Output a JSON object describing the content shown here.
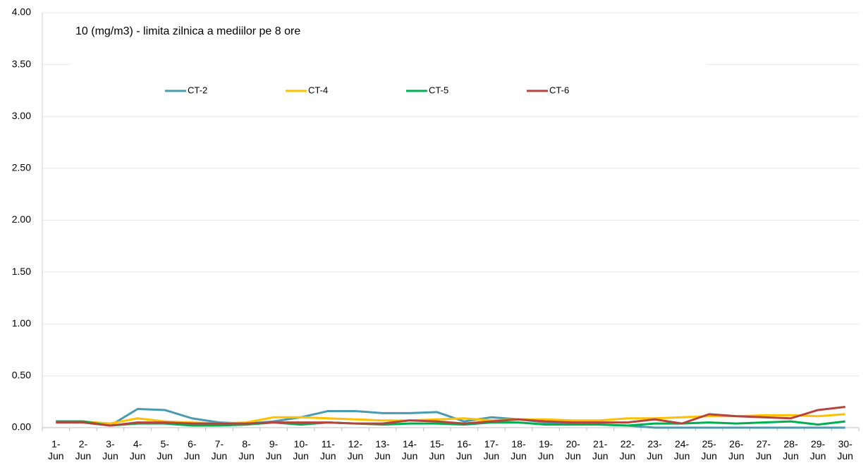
{
  "chart_data": {
    "type": "line",
    "title": "10 (mg/m3) - limita zilnica  a mediilor pe 8 ore",
    "categories": [
      "1-Jun",
      "2-Jun",
      "3-Jun",
      "4-Jun",
      "5-Jun",
      "6-Jun",
      "7-Jun",
      "8-Jun",
      "9-Jun",
      "10-Jun",
      "11-Jun",
      "12-Jun",
      "13-Jun",
      "14-Jun",
      "15-Jun",
      "16-Jun",
      "17-Jun",
      "18-Jun",
      "19-Jun",
      "20-Jun",
      "21-Jun",
      "22-Jun",
      "23-Jun",
      "24-Jun",
      "25-Jun",
      "26-Jun",
      "27-Jun",
      "28-Jun",
      "29-Jun",
      "30-Jun"
    ],
    "series": [
      {
        "name": "CT-2",
        "color": "#4a9bb0",
        "values": [
          0.06,
          0.06,
          0.02,
          0.18,
          0.17,
          0.09,
          0.05,
          0.04,
          0.06,
          0.1,
          0.16,
          0.16,
          0.14,
          0.14,
          0.15,
          0.06,
          0.1,
          0.08,
          0.05,
          0.04,
          0.03,
          0.02,
          0,
          0,
          0,
          0,
          0,
          0,
          0,
          0
        ]
      },
      {
        "name": "CT-4",
        "color": "#ffc000",
        "values": [
          0.05,
          0.06,
          0.04,
          0.09,
          0.06,
          0.05,
          0.04,
          0.05,
          0.1,
          0.1,
          0.09,
          0.08,
          0.07,
          0.07,
          0.08,
          0.09,
          0.07,
          0.08,
          0.08,
          0.07,
          0.07,
          0.09,
          0.09,
          0.1,
          0.11,
          0.11,
          0.12,
          0.12,
          0.11,
          0.13
        ]
      },
      {
        "name": "CT-5",
        "color": "#00b050",
        "values": [
          0.06,
          0.06,
          0.02,
          0.04,
          0.04,
          0.02,
          0.02,
          0.03,
          0.05,
          0.03,
          0.05,
          0.04,
          0.03,
          0.04,
          0.04,
          0.03,
          0.05,
          0.05,
          0.03,
          0.03,
          0.03,
          0.02,
          0.04,
          0.04,
          0.05,
          0.04,
          0.05,
          0.06,
          0.03,
          0.06
        ]
      },
      {
        "name": "CT-6",
        "color": "#b5443f",
        "values": [
          0.05,
          0.05,
          0.02,
          0.05,
          0.05,
          0.04,
          0.04,
          0.04,
          0.05,
          0.05,
          0.05,
          0.04,
          0.04,
          0.07,
          0.06,
          0.04,
          0.06,
          0.08,
          0.06,
          0.05,
          0.05,
          0.05,
          0.08,
          0.04,
          0.13,
          0.11,
          0.1,
          0.09,
          0.17,
          0.2
        ]
      }
    ],
    "ylim": [
      0,
      4
    ],
    "yticks": [
      {
        "value": 0,
        "label": "0.00"
      },
      {
        "value": 0.5,
        "label": "0.50"
      },
      {
        "value": 1,
        "label": "1.00"
      },
      {
        "value": 1.5,
        "label": "1.50"
      },
      {
        "value": 2,
        "label": "2.00"
      },
      {
        "value": 2.5,
        "label": "2.50"
      },
      {
        "value": 3,
        "label": "3.00"
      },
      {
        "value": 3.5,
        "label": "3.50"
      },
      {
        "value": 4,
        "label": "4.00"
      }
    ],
    "grid": true
  }
}
